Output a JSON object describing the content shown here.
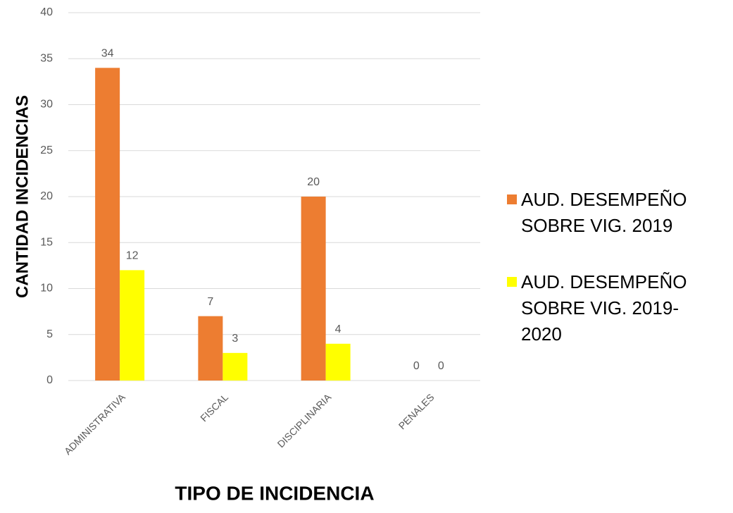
{
  "chart_data": {
    "type": "bar",
    "x_label": "TIPO DE INCIDENCIA",
    "y_label": "CANTIDAD INCIDENCIAS",
    "categories": [
      "ADMINISTRATIVA",
      "FISCAL",
      "DISCIPLINARIA",
      "PENALES"
    ],
    "series": [
      {
        "name": "AUD. DESEMPEÑO SOBRE VIG. 2019",
        "color": "#ed7d31",
        "values": [
          34,
          7,
          20,
          0
        ]
      },
      {
        "name": "AUD. DESEMPEÑO SOBRE VIG. 2019-2020",
        "color": "#ffff00",
        "values": [
          12,
          3,
          4,
          0
        ]
      }
    ],
    "ylim": [
      0,
      40
    ],
    "yticks": [
      0,
      5,
      10,
      15,
      20,
      25,
      30,
      35,
      40
    ],
    "grid": true,
    "legend": "right"
  }
}
